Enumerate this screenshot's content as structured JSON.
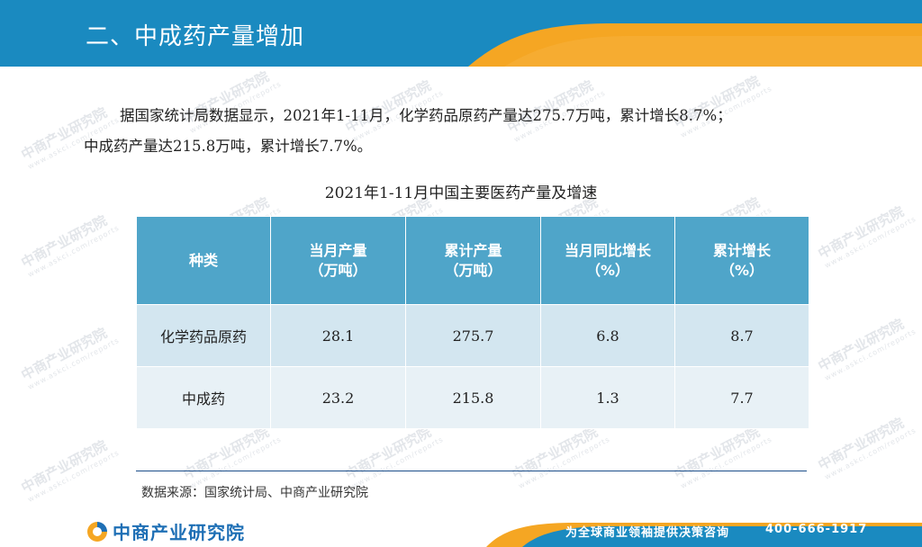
{
  "header": {
    "title": "二、中成药产量增加"
  },
  "paragraph": {
    "line1": "据国家统计局数据显示，2021年1-11月，化学药品原药产量达275.7万吨，累计增长8.7%；",
    "line2": "中成药产量达215.8万吨，累计增长7.7%。"
  },
  "table": {
    "caption": "2021年1-11月中国主要医药产量及增速",
    "headers": [
      {
        "line1": "种类",
        "line2": ""
      },
      {
        "line1": "当月产量",
        "line2": "（万吨）"
      },
      {
        "line1": "累计产量",
        "line2": "（万吨）"
      },
      {
        "line1": "当月同比增长",
        "line2": "（%）"
      },
      {
        "line1": "累计增长",
        "line2": "（%）"
      }
    ],
    "rows": [
      [
        "化学药品原药",
        "28.1",
        "275.7",
        "6.8",
        "8.7"
      ],
      [
        "中成药",
        "23.2",
        "215.8",
        "1.3",
        "7.7"
      ]
    ]
  },
  "source": "数据来源：国家统计局、中商产业研究院",
  "footer": {
    "logo_text": "中商产业研究院",
    "slogan": "为全球商业领袖提供决策咨询",
    "phone": "400-666-1917"
  },
  "watermark": {
    "main": "中商产业研究院",
    "sub": "www.askci.com/reports"
  },
  "colors": {
    "header_blue": "#1a8ac0",
    "accent_orange": "#f5a623",
    "table_header": "#4fa5c9",
    "logo_blue": "#1e6fb5"
  }
}
